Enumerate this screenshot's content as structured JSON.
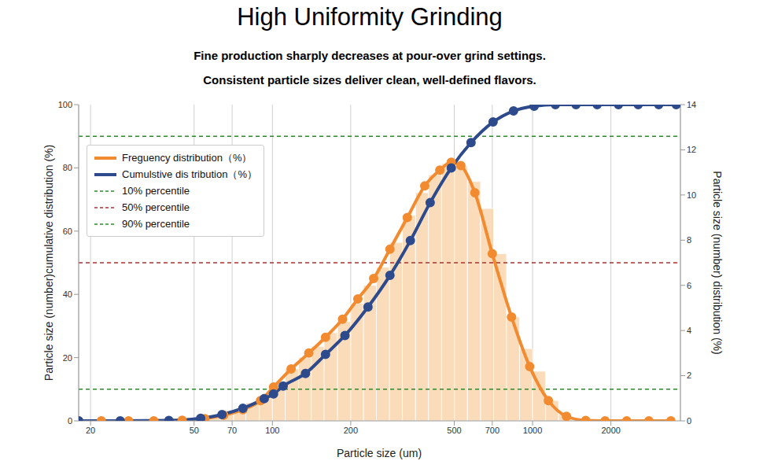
{
  "chart_data": {
    "type": "line",
    "title": "High Uniformity Grinding",
    "subtitle": [
      "Fine production sharply decreases at pour-over grind settings.",
      "Consistent particle sizes deliver clean, well-defined flavors."
    ],
    "x_label": "Particle size (um)",
    "y_label": "Particle size (number)cumulative distribution  (%)",
    "y2_label": "Particle size (number) distribution  (%)",
    "log": "x",
    "grid": "x",
    "legend": "upper left",
    "xlim": [
      18,
      3700
    ],
    "xticks": [
      20,
      50,
      70,
      100,
      200,
      500,
      700,
      1000,
      2000
    ],
    "ylim": [
      0,
      100
    ],
    "yticks": [
      0,
      20,
      40,
      60,
      80,
      100
    ],
    "y2lim": [
      0,
      14
    ],
    "y2ticks": [
      0,
      2,
      4,
      6,
      8,
      10,
      12,
      14
    ],
    "series": [
      {
        "type": "bar",
        "axis": "y2",
        "color": "#fad6ae",
        "bins": [
          56,
          63,
          71,
          79,
          89,
          100,
          112,
          126,
          141,
          158,
          178,
          200,
          224,
          251,
          282,
          316,
          355,
          398,
          447,
          501,
          562,
          631,
          708,
          794,
          891,
          1000,
          1122,
          1259,
          1413
        ],
        "values": [
          0.15,
          0.3,
          0.5,
          0.8,
          1.1,
          1.7,
          2.3,
          2.8,
          3.3,
          3.9,
          4.4,
          5.2,
          6.0,
          6.8,
          7.9,
          9.1,
          10.1,
          10.9,
          11.4,
          11.3,
          10.6,
          9.4,
          7.4,
          4.6,
          3.2,
          2.2,
          0.9,
          0.3
        ]
      },
      {
        "name": "Freguency distribution（%）",
        "type": "line",
        "axis": "y2",
        "color": "#f28b30",
        "marker": "circle",
        "x": [
          18,
          22,
          28,
          35,
          45,
          55,
          65,
          77,
          90,
          101,
          118,
          138,
          160,
          186,
          213,
          245,
          283,
          330,
          385,
          440,
          487,
          530,
          600,
          700,
          830,
          975,
          1150,
          1350,
          1600,
          1900,
          2300,
          2800,
          3400
        ],
        "values": [
          0,
          0,
          0,
          0,
          0.03,
          0.1,
          0.25,
          0.5,
          0.9,
          1.5,
          2.3,
          3.0,
          3.7,
          4.5,
          5.4,
          6.3,
          7.6,
          9.0,
          10.4,
          11.1,
          11.45,
          11.3,
          10.1,
          7.4,
          4.6,
          2.4,
          0.9,
          0.2,
          0.02,
          0,
          0,
          0,
          0
        ]
      },
      {
        "name": "Cumulstive dis tribution（%）",
        "type": "line",
        "color": "#2d4a8c",
        "marker": "circle",
        "x": [
          18,
          26,
          40,
          53,
          64,
          77,
          93,
          101,
          110,
          134,
          160,
          190,
          233,
          283,
          339,
          404,
          487,
          580,
          705,
          845,
          1014,
          1224,
          1468,
          1771,
          2138,
          2547,
          3054,
          3565
        ],
        "values": [
          0,
          0,
          0.1,
          0.8,
          2,
          4,
          7,
          8.5,
          11,
          15,
          21,
          27,
          36,
          46,
          57,
          69,
          80,
          88,
          94.5,
          98,
          99.5,
          100,
          100,
          100,
          100,
          100,
          100,
          100
        ]
      }
    ],
    "reference_lines": [
      {
        "name": "10% percentile",
        "value": 10,
        "color": "#2a8a2a",
        "line_style": "dashed"
      },
      {
        "name": "50% percentile",
        "value": 50,
        "color": "#a83232",
        "line_style": "dashed"
      },
      {
        "name": "90% percentile",
        "value": 90,
        "color": "#2a8a2a",
        "line_style": "dashed"
      }
    ]
  }
}
